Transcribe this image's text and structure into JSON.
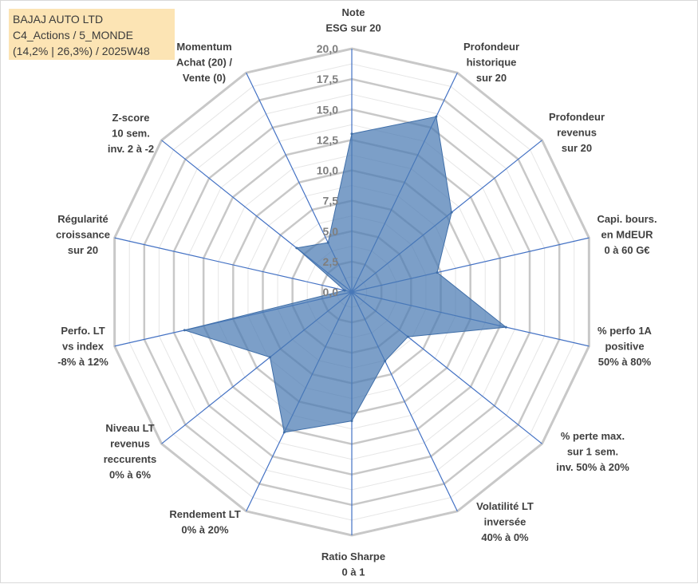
{
  "info": {
    "line1": "BAJAJ AUTO LTD",
    "line2": "C4_Actions / 5_MONDE",
    "line3": "(14,2% | 26,3%) / 2025W48"
  },
  "colors": {
    "fill": "#4a7ab3",
    "stroke": "#3f6ea8",
    "outer_ring": "#c8c8c8",
    "inner_ring": "#e6e6e6",
    "spoke": "#4472c4",
    "info_bg": "#fce4b4"
  },
  "chart_data": {
    "type": "radar",
    "title": "",
    "rmin": 0,
    "rmax": 20,
    "tick_labels": [
      "0,0",
      "2,5",
      "5,0",
      "7,5",
      "10,0",
      "12,5",
      "15,0",
      "17,5",
      "20,0"
    ],
    "tick_values": [
      0,
      2.5,
      5,
      7.5,
      10,
      12.5,
      15,
      17.5,
      20
    ],
    "axes": [
      {
        "label": [
          "Note",
          "ESG sur 20"
        ],
        "value": 13.0
      },
      {
        "label": [
          "Profondeur",
          "historique",
          "sur 20"
        ],
        "value": 16.0
      },
      {
        "label": [
          "Profondeur",
          "revenus",
          "sur 20"
        ],
        "value": 10.5
      },
      {
        "label": [
          "Capi. bours.",
          "en MdEUR",
          "0 à 60 G€"
        ],
        "value": 7.2
      },
      {
        "label": [
          "% perfo 1A",
          "positive",
          "50% à 80%"
        ],
        "value": 13.0
      },
      {
        "label": [
          "% perte max.",
          "sur 1 sem.",
          "inv. 50% à 20%"
        ],
        "value": 5.9
      },
      {
        "label": [
          "Volatilité LT",
          "inversée",
          "40% à 0%"
        ],
        "value": 6.3
      },
      {
        "label": [
          "Ratio Sharpe",
          "0 à 1"
        ],
        "value": 10.6
      },
      {
        "label": [
          "Rendement LT",
          "0% à 20%"
        ],
        "value": 12.8
      },
      {
        "label": [
          "Niveau LT",
          "revenus",
          "reccurents",
          "0% à 6%"
        ],
        "value": 8.6
      },
      {
        "label": [
          "Perfo. LT",
          "vs index",
          "-8% à 12%"
        ],
        "value": 14.1
      },
      {
        "label": [
          "Régularité",
          "croissance",
          "sur 20"
        ],
        "value": 0.6
      },
      {
        "label": [
          "Z-score",
          "10 sem.",
          "inv. 2 à -2"
        ],
        "value": 5.8
      },
      {
        "label": [
          "Momentum",
          "Achat (20) /",
          "Vente (0)"
        ],
        "value": 4.5
      }
    ]
  }
}
